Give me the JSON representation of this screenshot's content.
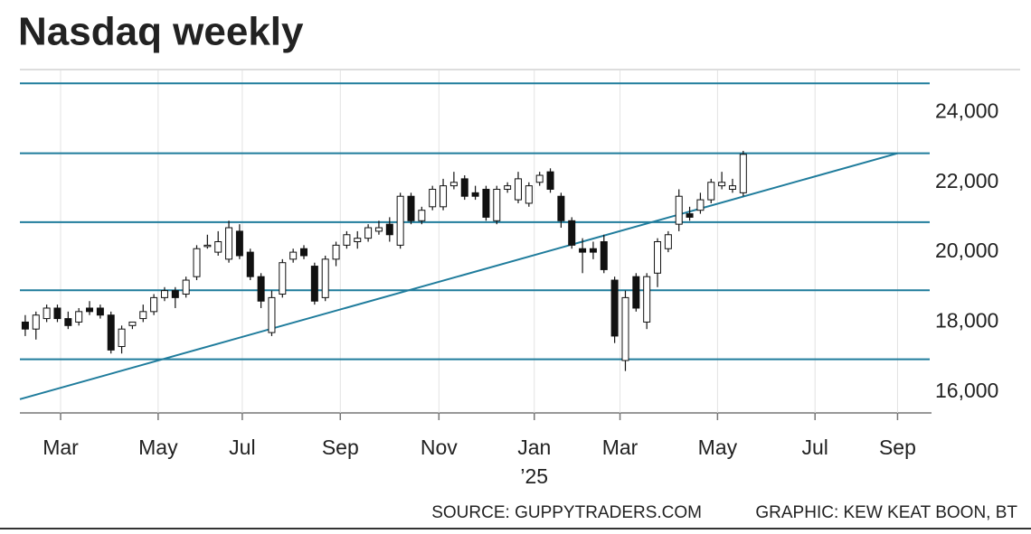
{
  "chart_data": {
    "type": "candlestick",
    "title": "Nasdaq weekly",
    "source": "SOURCE: GUPPYTRADERS.COM",
    "credit": "GRAPHIC: KEW KEAT BOON, BT",
    "x": [
      0,
      1,
      2,
      3,
      4,
      5,
      6,
      7,
      8,
      9,
      10,
      11,
      12,
      13,
      14,
      15,
      16,
      17,
      18,
      19,
      20,
      21,
      22,
      23,
      24,
      25,
      26,
      27,
      28,
      29,
      30,
      31,
      32,
      33,
      34,
      35,
      36,
      37,
      38,
      39,
      40,
      41,
      42,
      43,
      44,
      45,
      46,
      47,
      48,
      49,
      50,
      51,
      52,
      53,
      54,
      55,
      56,
      57,
      58,
      59,
      60,
      61,
      62,
      63,
      64,
      65,
      66,
      67
    ],
    "open": [
      18000,
      17800,
      18100,
      18400,
      18100,
      18000,
      18400,
      18400,
      18200,
      17300,
      17900,
      18100,
      18300,
      18700,
      18900,
      18800,
      19300,
      20200,
      20000,
      19800,
      20600,
      20000,
      19300,
      17700,
      18800,
      19800,
      20100,
      19600,
      18700,
      19800,
      20200,
      20300,
      20400,
      20600,
      20800,
      20200,
      21600,
      20900,
      21300,
      21300,
      21900,
      22100,
      21700,
      21800,
      20900,
      21800,
      21500,
      21400,
      22000,
      22300,
      21600,
      20900,
      20100,
      20100,
      20300,
      19200,
      16900,
      19300,
      18000,
      19400,
      20100,
      20800,
      21100,
      21200,
      21500,
      21900,
      21800,
      21700
    ],
    "high": [
      18200,
      18300,
      18500,
      18500,
      18300,
      18400,
      18600,
      18500,
      18300,
      17900,
      18000,
      18500,
      18800,
      19000,
      19000,
      19300,
      20200,
      20500,
      20600,
      20900,
      20800,
      20100,
      19400,
      18900,
      19800,
      20100,
      20200,
      19700,
      19900,
      20300,
      20600,
      20600,
      20800,
      20900,
      21000,
      21700,
      21700,
      21300,
      21900,
      22100,
      22300,
      22200,
      21900,
      21900,
      21900,
      22000,
      22300,
      22000,
      22300,
      22400,
      21700,
      21000,
      20400,
      20300,
      20500,
      19300,
      18900,
      19400,
      19400,
      20400,
      20600,
      21800,
      21300,
      21700,
      22100,
      22300,
      22100,
      22900
    ],
    "low": [
      17600,
      17500,
      18000,
      18000,
      17800,
      17900,
      18200,
      18100,
      17100,
      17100,
      17800,
      18000,
      18200,
      18600,
      18400,
      18700,
      19200,
      20100,
      19900,
      19700,
      19800,
      19200,
      18400,
      17600,
      18700,
      19700,
      19800,
      18500,
      18600,
      19600,
      20100,
      20100,
      20300,
      20500,
      20300,
      20100,
      20800,
      20800,
      21200,
      21200,
      21800,
      21500,
      21500,
      20900,
      20800,
      21700,
      21400,
      21300,
      21900,
      21700,
      20700,
      20100,
      19400,
      19800,
      19400,
      17400,
      16600,
      18300,
      17800,
      19000,
      20000,
      20600,
      20900,
      21100,
      21400,
      21800,
      21700,
      21600
    ],
    "close": [
      17800,
      18200,
      18400,
      18100,
      17900,
      18300,
      18300,
      18200,
      17200,
      17800,
      18000,
      18300,
      18700,
      18900,
      18700,
      19200,
      20100,
      20200,
      20300,
      20700,
      19900,
      19300,
      18600,
      18700,
      19700,
      20000,
      19900,
      18600,
      19800,
      20200,
      20500,
      20400,
      20700,
      20700,
      20500,
      21600,
      20900,
      21200,
      21800,
      21900,
      22000,
      21600,
      21600,
      21000,
      21800,
      21900,
      22100,
      21900,
      22200,
      21800,
      20900,
      20200,
      20000,
      20000,
      19500,
      17600,
      18700,
      18400,
      19300,
      20300,
      20500,
      21600,
      21000,
      21500,
      22000,
      22000,
      21900,
      22800
    ],
    "levels": [
      24830,
      22830,
      20860,
      18910,
      16935
    ],
    "trendline": {
      "x": [
        -0.5,
        81.4
      ],
      "y": [
        15792,
        22830
      ]
    },
    "xlim": [
      -0.5,
      84.4
    ],
    "ylim": [
      15400,
      25200
    ],
    "yticks": [
      {
        "value": 16000,
        "label": "16,000"
      },
      {
        "value": 18000,
        "label": "18,000"
      },
      {
        "value": 20000,
        "label": "20,000"
      },
      {
        "value": 22000,
        "label": "22,000"
      },
      {
        "value": 24000,
        "label": "24,000"
      }
    ],
    "xticks": [
      {
        "value": 3.3,
        "label": "Mar"
      },
      {
        "value": 12.4,
        "label": "May"
      },
      {
        "value": 20.25,
        "label": "Jul"
      },
      {
        "value": 29.4,
        "label": "Sep"
      },
      {
        "value": 38.6,
        "label": "Nov"
      },
      {
        "value": 47.5,
        "label": "Jan",
        "sublabel": "’25"
      },
      {
        "value": 55.5,
        "label": "Mar"
      },
      {
        "value": 64.6,
        "label": "May"
      },
      {
        "value": 73.7,
        "label": "Jul"
      },
      {
        "value": 81.4,
        "label": "Sep"
      }
    ],
    "up_color": "#ffffff",
    "down_color": "#111111",
    "line_color": "#1f7c9c",
    "title_color": "#1b80b3"
  }
}
